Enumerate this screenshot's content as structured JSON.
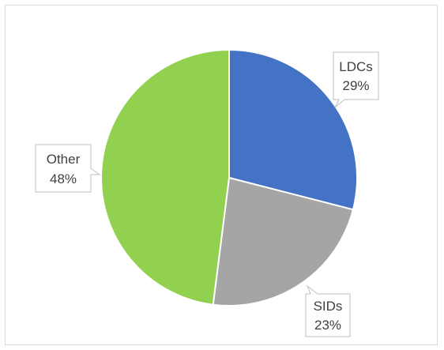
{
  "chart_data": {
    "type": "pie",
    "title": "",
    "slices": [
      {
        "label": "LDCs",
        "value": 29,
        "percent_label": "29%",
        "color": "#4472c4"
      },
      {
        "label": "SIDs",
        "value": 23,
        "percent_label": "23%",
        "color": "#a5a5a5"
      },
      {
        "label": "Other",
        "value": 48,
        "percent_label": "48%",
        "color": "#92d050"
      }
    ],
    "start_angle_deg": 0,
    "direction": "clockwise",
    "data_labels": "callouts"
  }
}
